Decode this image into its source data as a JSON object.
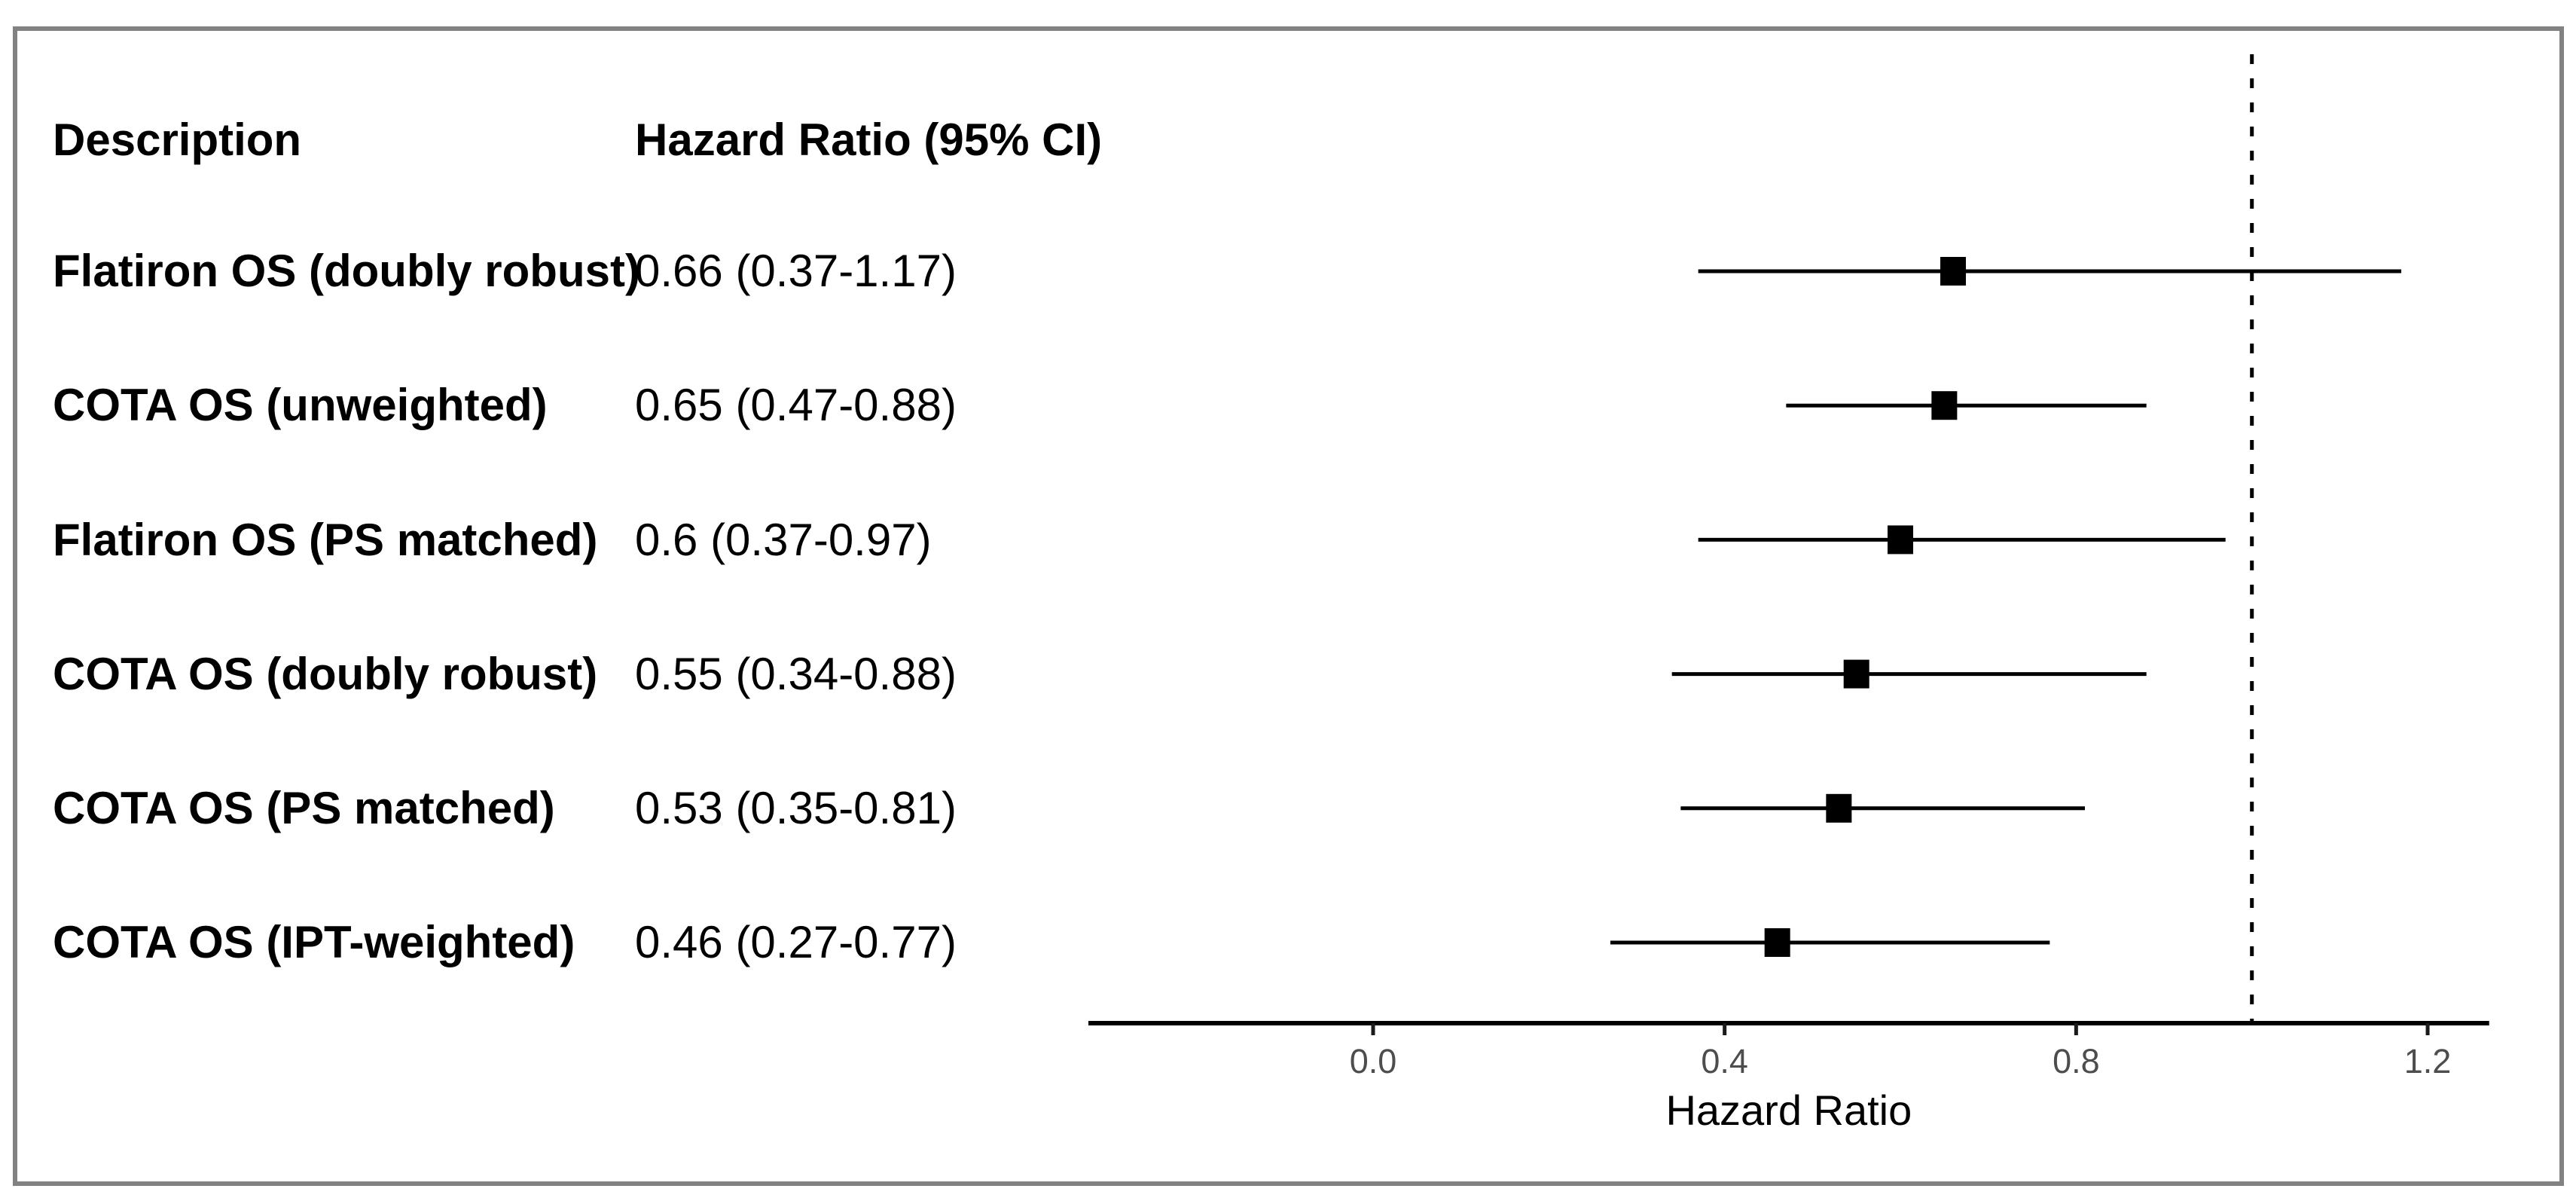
{
  "table": {
    "col1_header": "Description",
    "col2_header": "Hazard Ratio (95% CI)",
    "rows": [
      {
        "label": "Flatiron OS (doubly robust)",
        "value_text": "0.66 (0.37-1.17)",
        "hr": 0.66,
        "ci_low": 0.37,
        "ci_high": 1.17
      },
      {
        "label": "COTA OS (unweighted)",
        "value_text": "0.65 (0.47-0.88)",
        "hr": 0.65,
        "ci_low": 0.47,
        "ci_high": 0.88
      },
      {
        "label": "Flatiron OS (PS matched)",
        "value_text": "0.6 (0.37-0.97)",
        "hr": 0.6,
        "ci_low": 0.37,
        "ci_high": 0.97
      },
      {
        "label": "COTA OS (doubly robust)",
        "value_text": "0.55 (0.34-0.88)",
        "hr": 0.55,
        "ci_low": 0.34,
        "ci_high": 0.88
      },
      {
        "label": "COTA OS (PS matched)",
        "value_text": "0.53 (0.35-0.81)",
        "hr": 0.53,
        "ci_low": 0.35,
        "ci_high": 0.81
      },
      {
        "label": "COTA OS (IPT-weighted)",
        "value_text": "0.46 (0.27-0.77)",
        "hr": 0.46,
        "ci_low": 0.27,
        "ci_high": 0.77
      }
    ]
  },
  "chart_data": {
    "type": "scatter",
    "subtype": "forest-plot",
    "categories": [
      "Flatiron OS (doubly robust)",
      "COTA OS (unweighted)",
      "Flatiron OS (PS matched)",
      "COTA OS (doubly robust)",
      "COTA OS (PS matched)",
      "COTA OS (IPT-weighted)"
    ],
    "series": [
      {
        "name": "Hazard Ratio",
        "values": [
          0.66,
          0.65,
          0.6,
          0.55,
          0.53,
          0.46
        ]
      },
      {
        "name": "CI lower",
        "values": [
          0.37,
          0.47,
          0.37,
          0.34,
          0.35,
          0.27
        ]
      },
      {
        "name": "CI upper",
        "values": [
          1.17,
          0.88,
          0.97,
          0.88,
          0.81,
          0.77
        ]
      }
    ],
    "xlabel": "Hazard Ratio",
    "ylabel": "",
    "x_ticks": [
      0.0,
      0.4,
      0.8,
      1.2
    ],
    "x_tick_labels": [
      "0.0",
      "0.4",
      "0.8",
      "1.2"
    ],
    "xlim": [
      -0.324,
      1.27
    ],
    "reference_line_x": 1.0,
    "grid": false,
    "legend": false,
    "marker": "square",
    "colors": {
      "marker": "#000000",
      "ci_line": "#000000",
      "axis_line": "#000000",
      "tick_mark": "#1a1a1a",
      "tick_label": "#4d4d4d",
      "axis_title": "#000000",
      "reference_line": "#000000",
      "figure_border": "#828282"
    }
  }
}
